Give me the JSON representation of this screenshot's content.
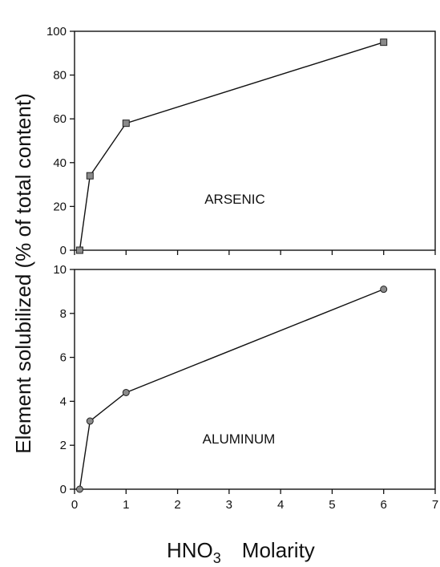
{
  "chart_data": [
    {
      "type": "line",
      "panel_label": "ARSENIC",
      "x": [
        0.1,
        0.3,
        1.0,
        6.0
      ],
      "y": [
        0,
        34,
        58,
        95
      ],
      "xlim": [
        0,
        7
      ],
      "ylim": [
        0,
        100
      ],
      "yticks": [
        0,
        20,
        40,
        60,
        80,
        100
      ],
      "marker": "square",
      "grid": false
    },
    {
      "type": "line",
      "panel_label": "ALUMINUM",
      "x": [
        0.1,
        0.3,
        1.0,
        6.0
      ],
      "y": [
        0,
        3.1,
        4.4,
        9.1
      ],
      "xlim": [
        0,
        7
      ],
      "ylim": [
        0,
        10
      ],
      "yticks": [
        0,
        2,
        4,
        6,
        8,
        10
      ],
      "xticks": [
        0,
        1,
        2,
        3,
        4,
        5,
        6,
        7
      ],
      "marker": "circle",
      "grid": false
    }
  ],
  "ylabel": "Element solubilized (% of total content)",
  "xlabel_main": "HNO",
  "xlabel_sub": "3",
  "xlabel_unit": "Molarity"
}
